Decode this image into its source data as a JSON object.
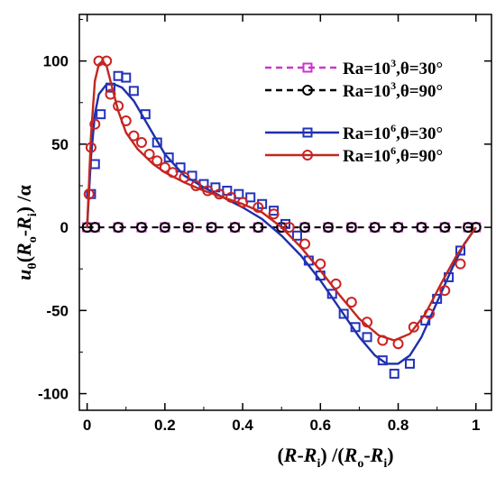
{
  "chart_data": {
    "type": "line",
    "xlim": [
      -0.02,
      1.04
    ],
    "ylim": [
      -110,
      128
    ],
    "x_ticks": [
      0,
      0.2,
      0.4,
      0.6,
      0.8,
      1
    ],
    "x_tick_labels": [
      "0",
      "0.2",
      "0.4",
      "0.6",
      "0.8",
      "1"
    ],
    "y_ticks": [
      -100,
      -50,
      0,
      50,
      100
    ],
    "y_tick_labels": [
      "-100",
      "-50",
      "0",
      "50",
      "100"
    ],
    "xlabel": {
      "parts": [
        "(",
        "R",
        "-",
        "R",
        "i",
        ") /(",
        "R",
        "o",
        "-",
        "R",
        "i",
        ")"
      ]
    },
    "ylabel": {
      "parts": [
        "u",
        "θ",
        "(",
        "R",
        "o",
        "-",
        "R",
        "i",
        ") /α"
      ]
    },
    "legend_position": "top-right",
    "series": [
      {
        "name": "Ra=10³,θ=30°",
        "label_parts": [
          "Ra=10",
          "3",
          ",θ=30°"
        ],
        "color": "#cc33cc",
        "line_style": "dashed",
        "marker": "square",
        "marker_color": "#cc33cc",
        "x": [
          0,
          0.02,
          0.08,
          0.14,
          0.2,
          0.26,
          0.32,
          0.38,
          0.44,
          0.5,
          0.56,
          0.62,
          0.68,
          0.74,
          0.8,
          0.86,
          0.92,
          0.98,
          1.0
        ],
        "y": [
          0,
          0,
          0,
          0,
          0,
          0,
          0,
          0,
          0,
          0,
          0,
          0,
          0,
          0,
          0,
          0,
          0,
          0,
          0
        ]
      },
      {
        "name": "Ra=10³,θ=90°",
        "label_parts": [
          "Ra=10",
          "3",
          ",θ=90°"
        ],
        "color": "#000000",
        "line_style": "dashed",
        "marker": "circle",
        "marker_color": "#000000",
        "x": [
          0,
          0.02,
          0.08,
          0.14,
          0.2,
          0.26,
          0.32,
          0.38,
          0.44,
          0.5,
          0.56,
          0.62,
          0.68,
          0.74,
          0.8,
          0.86,
          0.92,
          0.98,
          1.0
        ],
        "y": [
          0,
          0,
          0,
          0,
          0,
          0,
          0,
          0,
          0,
          0,
          0,
          0,
          0,
          0,
          0,
          0,
          0,
          0,
          0
        ]
      },
      {
        "name": "Ra=10⁶,θ=30°",
        "label_parts": [
          "Ra=10",
          "6",
          ",θ=30°"
        ],
        "color": "#1f2fa8",
        "line_style": "solid",
        "marker": "square",
        "marker_color": "#2233bb",
        "line": {
          "x": [
            0,
            0.01,
            0.02,
            0.03,
            0.05,
            0.07,
            0.09,
            0.12,
            0.16,
            0.2,
            0.25,
            0.3,
            0.35,
            0.4,
            0.45,
            0.5,
            0.55,
            0.6,
            0.65,
            0.7,
            0.74,
            0.77,
            0.8,
            0.83,
            0.86,
            0.9,
            0.94,
            0.97,
            1.0
          ],
          "y": [
            0,
            42,
            68,
            80,
            86,
            86,
            84,
            76,
            60,
            44,
            31,
            24,
            18,
            12,
            5,
            -5,
            -17,
            -32,
            -49,
            -66,
            -77,
            -82,
            -82,
            -77,
            -66,
            -45,
            -24,
            -10,
            0
          ]
        },
        "markers": {
          "x": [
            0.01,
            0.02,
            0.035,
            0.06,
            0.08,
            0.1,
            0.12,
            0.15,
            0.18,
            0.21,
            0.24,
            0.27,
            0.3,
            0.33,
            0.36,
            0.39,
            0.42,
            0.45,
            0.48,
            0.51,
            0.54,
            0.57,
            0.6,
            0.63,
            0.66,
            0.69,
            0.72,
            0.76,
            0.79,
            0.83,
            0.87,
            0.9,
            0.93,
            0.96
          ],
          "y": [
            20,
            38,
            68,
            84,
            91,
            90,
            82,
            68,
            51,
            42,
            36,
            31,
            26,
            24,
            22,
            20,
            18,
            14,
            10,
            2,
            -5,
            -20,
            -29,
            -40,
            -52,
            -60,
            -66,
            -80,
            -88,
            -82,
            -56,
            -43,
            -30,
            -14
          ]
        }
      },
      {
        "name": "Ra=10⁶,θ=90°",
        "label_parts": [
          "Ra=10",
          "6",
          ",θ=90°"
        ],
        "color": "#c0281e",
        "line_style": "solid",
        "marker": "circle",
        "marker_color": "#cc2222",
        "line": {
          "x": [
            0,
            0.01,
            0.02,
            0.03,
            0.04,
            0.05,
            0.06,
            0.08,
            0.1,
            0.13,
            0.17,
            0.2,
            0.25,
            0.3,
            0.35,
            0.4,
            0.45,
            0.5,
            0.55,
            0.6,
            0.65,
            0.7,
            0.75,
            0.79,
            0.83,
            0.87,
            0.91,
            0.95,
            1.0
          ],
          "y": [
            0,
            55,
            88,
            98,
            100,
            97,
            88,
            70,
            57,
            47,
            38,
            33,
            27,
            22,
            18,
            14,
            9,
            0,
            -12,
            -26,
            -41,
            -55,
            -65,
            -68,
            -64,
            -52,
            -34,
            -17,
            0
          ]
        },
        "markers": {
          "x": [
            0.005,
            0.01,
            0.02,
            0.03,
            0.05,
            0.06,
            0.08,
            0.1,
            0.12,
            0.14,
            0.16,
            0.18,
            0.2,
            0.22,
            0.25,
            0.28,
            0.31,
            0.34,
            0.37,
            0.4,
            0.44,
            0.48,
            0.52,
            0.56,
            0.6,
            0.64,
            0.68,
            0.72,
            0.76,
            0.8,
            0.84,
            0.88,
            0.92,
            0.96
          ],
          "y": [
            20,
            48,
            62,
            100,
            100,
            80,
            73,
            64,
            55,
            51,
            44,
            40,
            36,
            33,
            30,
            25,
            22,
            20,
            18,
            15,
            12,
            8,
            0,
            -10,
            -22,
            -34,
            -45,
            -57,
            -68,
            -70,
            -60,
            -52,
            -38,
            -22
          ]
        }
      }
    ]
  }
}
